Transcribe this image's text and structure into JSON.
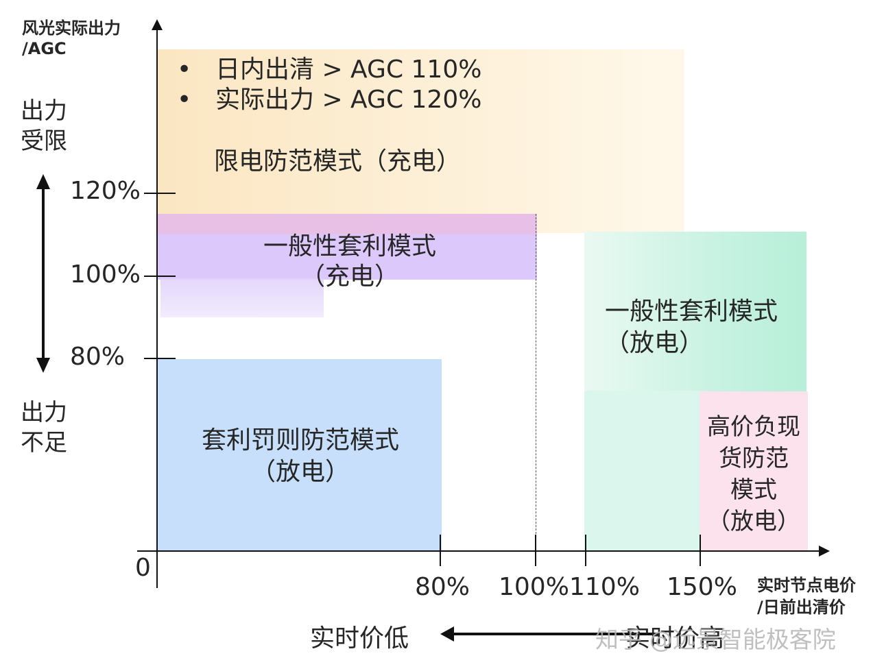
{
  "y_axis": {
    "title_line1": "风光实际出力",
    "title_line2": "/AGC",
    "upper_label_line1": "出力",
    "upper_label_line2": "受限",
    "lower_label_line1": "出力",
    "lower_label_line2": "不足",
    "ticks": [
      "120%",
      "100%",
      "80%"
    ]
  },
  "x_axis": {
    "title_line1": "实时节点电价",
    "title_line2": "/日前出清价",
    "origin": "0",
    "ticks": [
      "80%",
      "100%",
      "110%",
      "150%"
    ],
    "bottom_left_label": "实时价低",
    "bottom_right_label": "实时价高"
  },
  "regions": {
    "limit": {
      "bullet1": "日内出清 > AGC 110%",
      "bullet2": "实际出力 > AGC 120%",
      "name": "限电防范模式（充电）"
    },
    "general_charge": {
      "line1": "一般性套利模式",
      "line2": "（充电）"
    },
    "arbitrage_penalty": {
      "line1": "套利罚则防范模式",
      "line2": "（放电）"
    },
    "general_discharge": {
      "line1": "一般性套利模式",
      "line2": "（放电）"
    },
    "high_price": {
      "line1": "高价负现",
      "line2": "货防范",
      "line3": "模式",
      "line4": "（放电）"
    }
  },
  "watermark": "知乎 @远景智能极客院",
  "colors": {
    "limit": "#fbe6c2",
    "general_charge": "#d7befa",
    "arbitrage_penalty": "#c7dffa",
    "general_discharge": "#c8f2e2",
    "high_price": "#fbe2ec"
  }
}
